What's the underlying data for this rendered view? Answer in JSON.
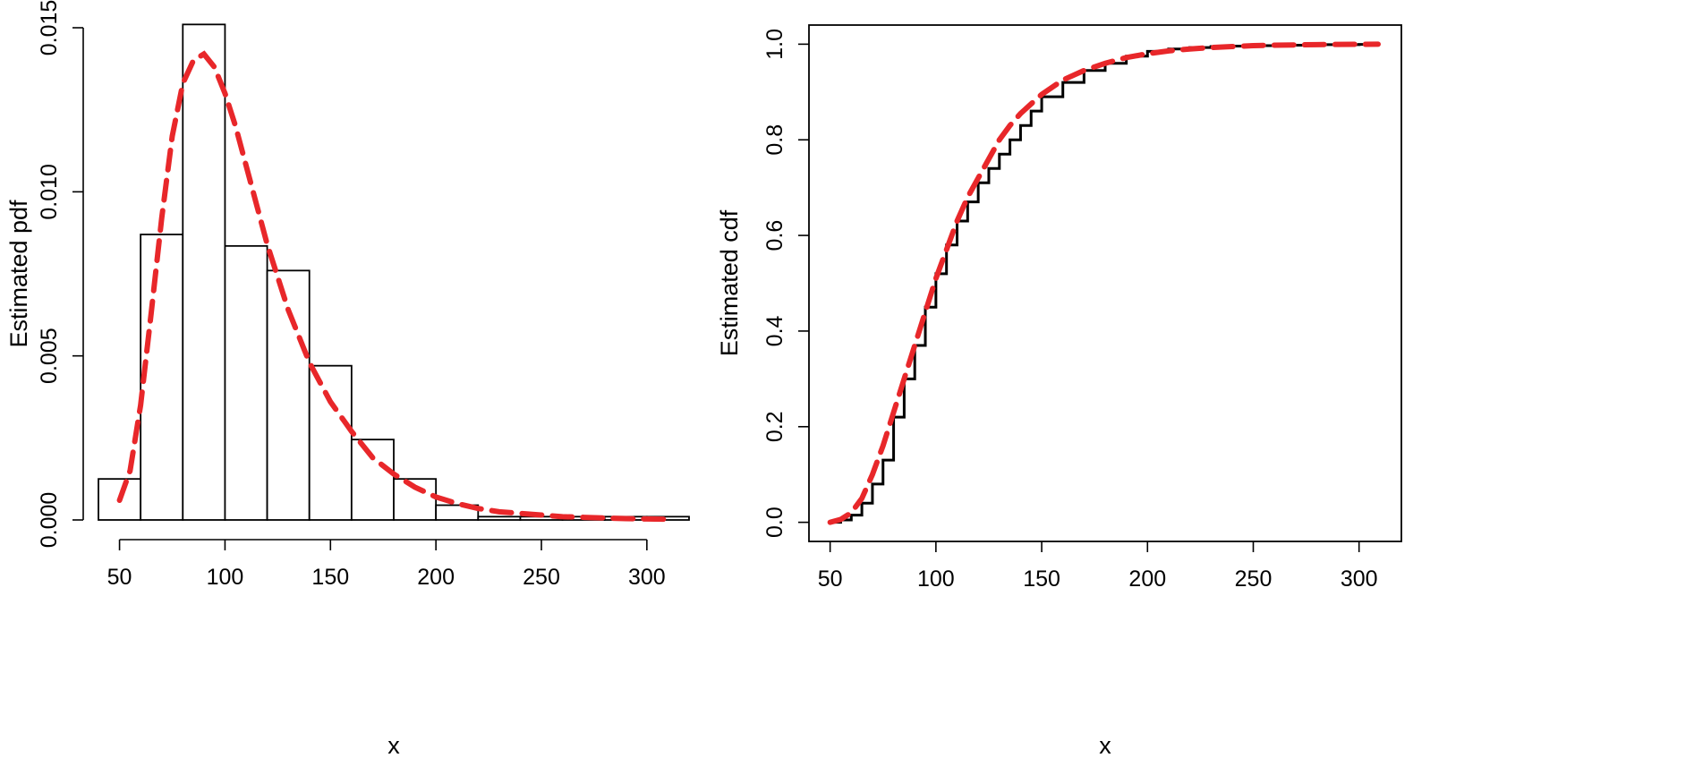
{
  "colors": {
    "fit": "#e8272a",
    "empirical": "#000000",
    "bar_border": "#000000"
  },
  "chart_data": [
    {
      "type": "bar",
      "subtype": "histogram-with-density",
      "xlabel": "x",
      "ylabel": "Estimated pdf",
      "xlim": [
        40,
        320
      ],
      "ylim": [
        0,
        0.015
      ],
      "box": "left-bottom",
      "x_ticks": [
        50,
        100,
        150,
        200,
        250,
        300
      ],
      "x_tick_labels": [
        "50",
        "100",
        "150",
        "200",
        "250",
        "300"
      ],
      "y_ticks": [
        0,
        0.005,
        0.01,
        0.015
      ],
      "y_tick_labels": [
        "0.000",
        "0.005",
        "0.010",
        "0.015"
      ],
      "bins": [
        {
          "from": 40,
          "to": 60,
          "density": 0.00125
        },
        {
          "from": 60,
          "to": 80,
          "density": 0.0087
        },
        {
          "from": 80,
          "to": 100,
          "density": 0.0151
        },
        {
          "from": 100,
          "to": 120,
          "density": 0.00835
        },
        {
          "from": 120,
          "to": 140,
          "density": 0.0076
        },
        {
          "from": 140,
          "to": 160,
          "density": 0.0047
        },
        {
          "from": 160,
          "to": 180,
          "density": 0.00245
        },
        {
          "from": 180,
          "to": 200,
          "density": 0.00125
        },
        {
          "from": 200,
          "to": 220,
          "density": 0.00045
        },
        {
          "from": 220,
          "to": 240,
          "density": 0.0001
        },
        {
          "from": 240,
          "to": 260,
          "density": 0.0001
        },
        {
          "from": 260,
          "to": 280,
          "density": 0.0001
        },
        {
          "from": 280,
          "to": 300,
          "density": 0.0001
        },
        {
          "from": 300,
          "to": 320,
          "density": 0.0001
        }
      ],
      "series": [
        {
          "style": "dashed",
          "color": "#e8272a",
          "x": [
            50,
            55,
            60,
            65,
            70,
            75,
            80,
            85,
            90,
            95,
            100,
            105,
            110,
            115,
            120,
            130,
            140,
            150,
            160,
            170,
            180,
            190,
            200,
            210,
            220,
            230,
            240,
            250,
            260,
            270,
            280,
            290,
            300,
            310
          ],
          "y": [
            0.0006,
            0.0015,
            0.0035,
            0.0063,
            0.0092,
            0.0117,
            0.0133,
            0.014,
            0.0142,
            0.0138,
            0.013,
            0.012,
            0.0108,
            0.0096,
            0.0084,
            0.0064,
            0.0048,
            0.0036,
            0.0027,
            0.0019,
            0.0014,
            0.001,
            0.0007,
            0.0005,
            0.00035,
            0.00025,
            0.0002,
            0.00015,
            0.0001,
            8e-05,
            6e-05,
            4e-05,
            3e-05,
            2e-05
          ]
        }
      ]
    },
    {
      "type": "line",
      "xlabel": "x",
      "ylabel": "Estimated cdf",
      "xlim": [
        40,
        320
      ],
      "ylim": [
        -0.04,
        1.04
      ],
      "box": "full",
      "x_ticks": [
        50,
        100,
        150,
        200,
        250,
        300
      ],
      "x_tick_labels": [
        "50",
        "100",
        "150",
        "200",
        "250",
        "300"
      ],
      "y_ticks": [
        0,
        0.2,
        0.4,
        0.6,
        0.8,
        1.0
      ],
      "y_tick_labels": [
        "0.0",
        "0.2",
        "0.4",
        "0.6",
        "0.8",
        "1.0"
      ],
      "series": [
        {
          "style": "step",
          "color": "#000000",
          "x": [
            50,
            55,
            60,
            65,
            70,
            75,
            80,
            85,
            90,
            95,
            100,
            105,
            110,
            115,
            120,
            125,
            130,
            135,
            140,
            145,
            150,
            160,
            170,
            180,
            190,
            200,
            210,
            220,
            230,
            240,
            250,
            260,
            280,
            300,
            309
          ],
          "y": [
            0.0,
            0.005,
            0.015,
            0.04,
            0.08,
            0.13,
            0.22,
            0.3,
            0.37,
            0.45,
            0.52,
            0.58,
            0.63,
            0.67,
            0.71,
            0.74,
            0.77,
            0.8,
            0.83,
            0.86,
            0.89,
            0.92,
            0.945,
            0.96,
            0.975,
            0.985,
            0.99,
            0.993,
            0.995,
            0.996,
            0.997,
            0.998,
            0.999,
            0.9995,
            1.0
          ]
        },
        {
          "style": "dashed",
          "color": "#e8272a",
          "x": [
            50,
            55,
            60,
            65,
            70,
            75,
            80,
            85,
            90,
            95,
            100,
            105,
            110,
            115,
            120,
            125,
            130,
            135,
            140,
            145,
            150,
            160,
            170,
            180,
            190,
            200,
            210,
            220,
            230,
            240,
            250,
            260,
            270,
            280,
            290,
            300,
            309
          ],
          "y": [
            0.0,
            0.006,
            0.02,
            0.05,
            0.1,
            0.16,
            0.23,
            0.3,
            0.37,
            0.44,
            0.51,
            0.57,
            0.63,
            0.68,
            0.72,
            0.76,
            0.8,
            0.83,
            0.855,
            0.875,
            0.895,
            0.925,
            0.945,
            0.96,
            0.972,
            0.98,
            0.986,
            0.99,
            0.993,
            0.995,
            0.997,
            0.998,
            0.9985,
            0.999,
            0.9995,
            0.9998,
            1.0
          ]
        }
      ]
    }
  ]
}
